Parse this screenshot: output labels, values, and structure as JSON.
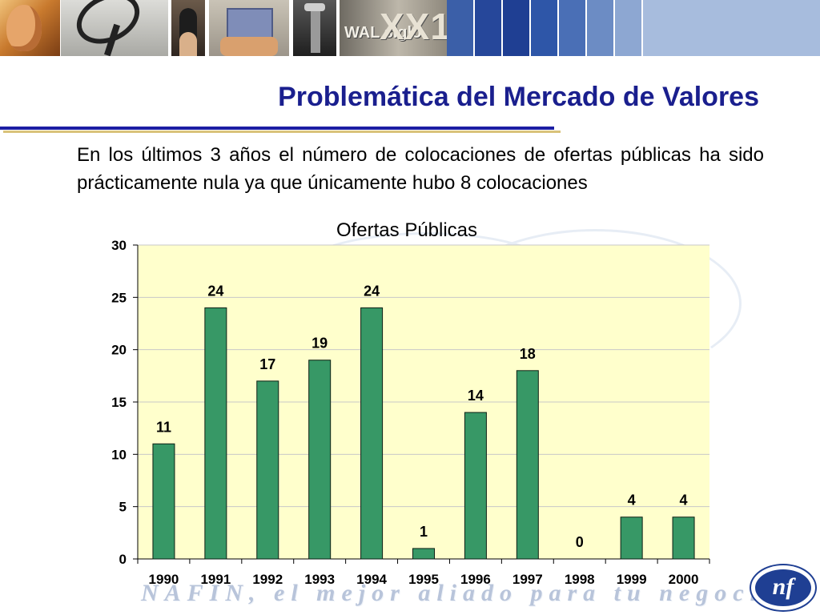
{
  "header": {
    "banner_text_small": "WAL siglo",
    "banner_text_large": "XX1",
    "stripe_colors": [
      "#3b5fa8",
      "#26479a",
      "#1f3f93",
      "#2e56a8",
      "#4a6fb6",
      "#6c8cc4",
      "#8da7d2",
      "#a7bcdd"
    ]
  },
  "slide": {
    "title": "Problemática del Mercado de Valores",
    "body": "En los últimos 3 años el número de colocaciones de ofertas públicas ha sido prácticamente nula ya que únicamente hubo 8 colocaciones"
  },
  "chart_data": {
    "type": "bar",
    "title": "Ofertas Públicas",
    "categories": [
      "1990",
      "1991",
      "1992",
      "1993",
      "1994",
      "1995",
      "1996",
      "1997",
      "1998",
      "1999",
      "2000"
    ],
    "values": [
      11,
      24,
      17,
      19,
      24,
      1,
      14,
      18,
      0,
      4,
      4
    ],
    "ylim": [
      0,
      30
    ],
    "yticks": [
      0,
      5,
      10,
      15,
      20,
      25,
      30
    ],
    "grid": true,
    "legend": "none",
    "colors": {
      "bar": "#379866",
      "bar_border": "#0d1f14",
      "plot_background": "#ffffcc",
      "gridline": "#c8c8c8"
    }
  },
  "footer": {
    "slogan": "NAFIN, el mejor aliado para tu negocio",
    "logo_text": "nf"
  }
}
